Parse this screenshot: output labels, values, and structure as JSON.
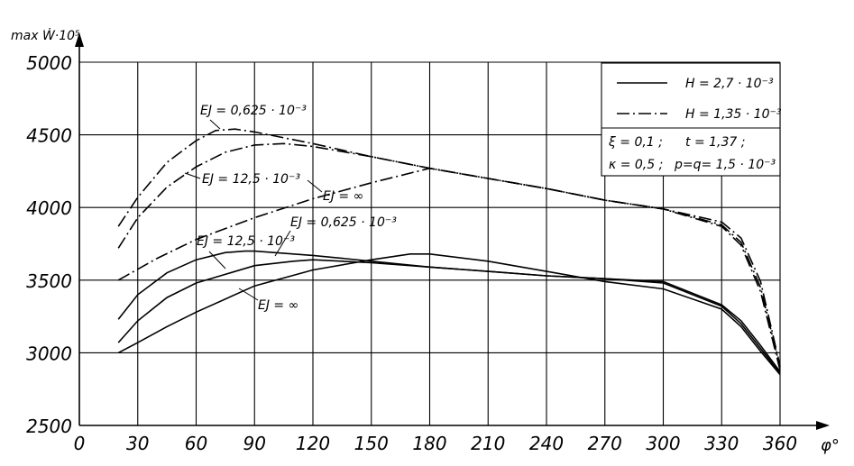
{
  "chart_data": {
    "type": "line",
    "ylabel": "max Ẇ·10⁵",
    "xlabel": "φ°",
    "xlim": [
      0,
      360
    ],
    "ylim": [
      2500,
      5000
    ],
    "x_ticks": [
      "0",
      "30",
      "60",
      "90",
      "120",
      "150",
      "180",
      "210",
      "240",
      "270",
      "300",
      "330",
      "360"
    ],
    "y_ticks": [
      "2500",
      "3000",
      "3500",
      "4000",
      "4500",
      "5000"
    ],
    "grid": true,
    "legend_position": "top-right",
    "legend": {
      "solid_label": "H = 2,7 · 10⁻³",
      "dashdot_label": "H = 1,35 · 10⁻³",
      "params_line1_left": "ξ = 0,1 ;",
      "params_line1_right": "t = 1,37 ;",
      "params_line2_left": "κ = 0,5 ;",
      "params_line2_right": "p=q= 1,5 · 10⁻³"
    },
    "annotations": {
      "dashdot_ej_0625": "EJ = 0,625 · 10⁻³",
      "dashdot_ej_125": "EJ = 12,5 · 10⁻³",
      "dashdot_ej_inf": "EJ = ∞",
      "solid_ej_125": "EJ = 12,5 · 10⁻³",
      "solid_ej_0625": "EJ = 0,625 · 10⁻³",
      "solid_ej_inf": "EJ = ∞"
    },
    "series": [
      {
        "style": "dashdot",
        "points": [
          [
            20,
            3870
          ],
          [
            30,
            4070
          ],
          [
            45,
            4310
          ],
          [
            60,
            4460
          ],
          [
            70,
            4530
          ],
          [
            80,
            4540
          ],
          [
            90,
            4520
          ],
          [
            120,
            4440
          ],
          [
            150,
            4350
          ],
          [
            180,
            4270
          ],
          [
            210,
            4200
          ],
          [
            240,
            4130
          ],
          [
            270,
            4050
          ],
          [
            300,
            3990
          ],
          [
            330,
            3870
          ],
          [
            340,
            3740
          ],
          [
            350,
            3420
          ],
          [
            360,
            2880
          ]
        ]
      },
      {
        "style": "dashdot",
        "points": [
          [
            20,
            3720
          ],
          [
            30,
            3930
          ],
          [
            45,
            4140
          ],
          [
            60,
            4280
          ],
          [
            75,
            4380
          ],
          [
            90,
            4430
          ],
          [
            105,
            4440
          ],
          [
            120,
            4420
          ],
          [
            150,
            4350
          ],
          [
            180,
            4270
          ],
          [
            210,
            4200
          ],
          [
            240,
            4130
          ],
          [
            270,
            4050
          ],
          [
            300,
            3990
          ],
          [
            330,
            3880
          ],
          [
            340,
            3760
          ],
          [
            350,
            3450
          ],
          [
            360,
            2900
          ]
        ]
      },
      {
        "style": "dashdot",
        "points": [
          [
            20,
            3500
          ],
          [
            40,
            3650
          ],
          [
            60,
            3780
          ],
          [
            90,
            3930
          ],
          [
            120,
            4060
          ],
          [
            150,
            4170
          ],
          [
            180,
            4270
          ],
          [
            210,
            4200
          ],
          [
            240,
            4130
          ],
          [
            270,
            4050
          ],
          [
            300,
            3990
          ],
          [
            330,
            3900
          ],
          [
            340,
            3790
          ],
          [
            350,
            3490
          ],
          [
            360,
            2910
          ]
        ]
      },
      {
        "style": "solid",
        "points": [
          [
            20,
            3230
          ],
          [
            30,
            3400
          ],
          [
            45,
            3550
          ],
          [
            60,
            3640
          ],
          [
            75,
            3690
          ],
          [
            85,
            3700
          ],
          [
            90,
            3700
          ],
          [
            120,
            3670
          ],
          [
            150,
            3630
          ],
          [
            180,
            3590
          ],
          [
            210,
            3560
          ],
          [
            240,
            3530
          ],
          [
            270,
            3510
          ],
          [
            300,
            3490
          ],
          [
            330,
            3330
          ],
          [
            340,
            3220
          ],
          [
            350,
            3050
          ],
          [
            360,
            2870
          ]
        ]
      },
      {
        "style": "solid",
        "points": [
          [
            20,
            3070
          ],
          [
            30,
            3220
          ],
          [
            45,
            3380
          ],
          [
            60,
            3480
          ],
          [
            90,
            3600
          ],
          [
            110,
            3630
          ],
          [
            120,
            3640
          ],
          [
            150,
            3620
          ],
          [
            180,
            3590
          ],
          [
            210,
            3560
          ],
          [
            240,
            3530
          ],
          [
            270,
            3510
          ],
          [
            300,
            3480
          ],
          [
            330,
            3320
          ],
          [
            340,
            3200
          ],
          [
            350,
            3030
          ],
          [
            360,
            2860
          ]
        ]
      },
      {
        "style": "solid",
        "points": [
          [
            20,
            3000
          ],
          [
            30,
            3070
          ],
          [
            45,
            3180
          ],
          [
            60,
            3280
          ],
          [
            90,
            3460
          ],
          [
            120,
            3570
          ],
          [
            150,
            3640
          ],
          [
            170,
            3680
          ],
          [
            180,
            3680
          ],
          [
            210,
            3630
          ],
          [
            240,
            3560
          ],
          [
            270,
            3490
          ],
          [
            300,
            3440
          ],
          [
            330,
            3300
          ],
          [
            340,
            3180
          ],
          [
            350,
            3010
          ],
          [
            360,
            2850
          ]
        ]
      }
    ]
  }
}
